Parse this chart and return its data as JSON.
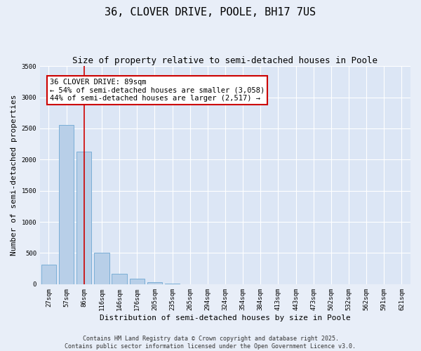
{
  "title": "36, CLOVER DRIVE, POOLE, BH17 7US",
  "subtitle": "Size of property relative to semi-detached houses in Poole",
  "xlabel": "Distribution of semi-detached houses by size in Poole",
  "ylabel": "Number of semi-detached properties",
  "categories": [
    "27sqm",
    "57sqm",
    "86sqm",
    "116sqm",
    "146sqm",
    "176sqm",
    "205sqm",
    "235sqm",
    "265sqm",
    "294sqm",
    "324sqm",
    "354sqm",
    "384sqm",
    "413sqm",
    "443sqm",
    "473sqm",
    "502sqm",
    "532sqm",
    "562sqm",
    "591sqm",
    "621sqm"
  ],
  "values": [
    310,
    2550,
    2130,
    510,
    165,
    85,
    30,
    5,
    0,
    0,
    0,
    0,
    0,
    0,
    0,
    0,
    0,
    0,
    0,
    0,
    0
  ],
  "bar_color": "#b8cfe8",
  "bar_edge_color": "#7aaed6",
  "vline_x": 2,
  "vline_color": "#cc0000",
  "annotation_title": "36 CLOVER DRIVE: 89sqm",
  "annotation_line1": "← 54% of semi-detached houses are smaller (3,058)",
  "annotation_line2": "44% of semi-detached houses are larger (2,517) →",
  "annotation_box_color": "#cc0000",
  "ylim": [
    0,
    3500
  ],
  "yticks": [
    0,
    500,
    1000,
    1500,
    2000,
    2500,
    3000,
    3500
  ],
  "background_color": "#e8eef8",
  "plot_bg_color": "#dce6f5",
  "grid_color": "#ffffff",
  "footer_line1": "Contains HM Land Registry data © Crown copyright and database right 2025.",
  "footer_line2": "Contains public sector information licensed under the Open Government Licence v3.0.",
  "title_fontsize": 11,
  "subtitle_fontsize": 9,
  "label_fontsize": 8,
  "tick_fontsize": 6.5,
  "annotation_fontsize": 7.5,
  "footer_fontsize": 6
}
